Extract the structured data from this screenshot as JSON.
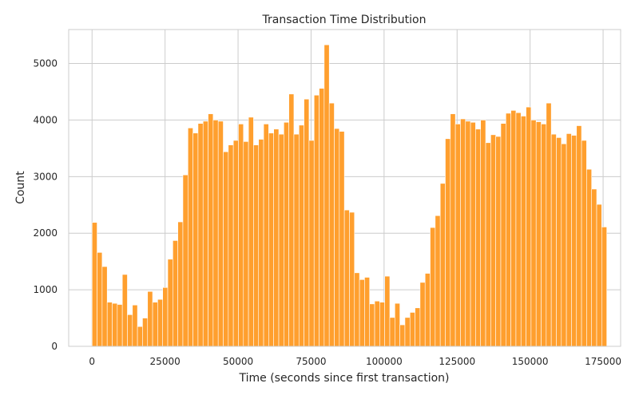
{
  "chart_data": {
    "type": "bar",
    "title": "Transaction Time Distribution",
    "xlabel": "Time (seconds since first transaction)",
    "ylabel": "Count",
    "xlim": [
      -8000,
      181000
    ],
    "ylim": [
      0,
      5600
    ],
    "xticks": [
      0,
      25000,
      50000,
      75000,
      100000,
      125000,
      150000,
      175000
    ],
    "yticks": [
      0,
      1000,
      2000,
      3000,
      4000,
      5000
    ],
    "grid": true,
    "bar_color": "#ff9f2e",
    "bin_start": 0,
    "bin_width": 1728,
    "values": [
      2190,
      1660,
      1410,
      780,
      760,
      740,
      1270,
      560,
      730,
      350,
      500,
      970,
      780,
      830,
      1040,
      1540,
      1870,
      2200,
      3030,
      3860,
      3770,
      3940,
      3980,
      4110,
      4000,
      3980,
      3440,
      3560,
      3640,
      3930,
      3620,
      4050,
      3560,
      3660,
      3930,
      3770,
      3840,
      3750,
      3960,
      4460,
      3750,
      3910,
      4370,
      3640,
      4440,
      4560,
      5330,
      4300,
      3850,
      3800,
      2410,
      2370,
      1300,
      1180,
      1220,
      750,
      800,
      780,
      1240,
      510,
      760,
      380,
      510,
      600,
      680,
      1130,
      1290,
      2100,
      2310,
      2880,
      3670,
      4110,
      3930,
      4020,
      3980,
      3960,
      3840,
      4000,
      3600,
      3740,
      3710,
      3940,
      4120,
      4170,
      4130,
      4070,
      4230,
      4000,
      3970,
      3930,
      4300,
      3750,
      3690,
      3580,
      3760,
      3730,
      3900,
      3640,
      3130,
      2780,
      2510,
      2110
    ]
  }
}
